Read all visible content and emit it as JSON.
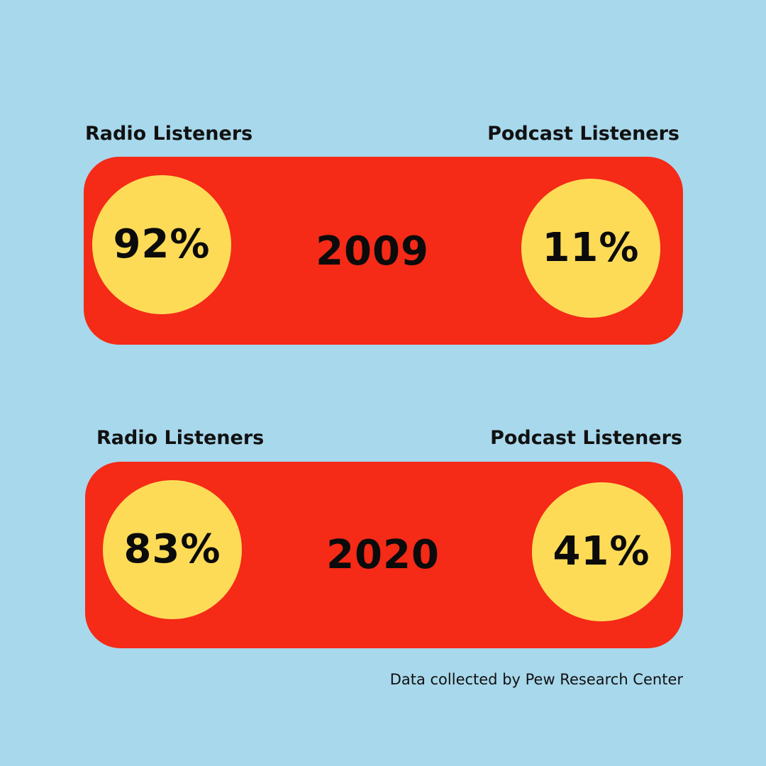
{
  "colors": {
    "background": "#a8d8ec",
    "panel": "#f52a17",
    "circle": "#fddb57",
    "text": "#0b0b0b"
  },
  "chart_data": {
    "type": "table",
    "columns": [
      "Radio Listeners",
      "Podcast Listeners"
    ],
    "rows": [
      {
        "year": "2009",
        "radio": "92%",
        "podcast": "11%",
        "radio_value": 92,
        "podcast_value": 11
      },
      {
        "year": "2020",
        "radio": "83%",
        "podcast": "41%",
        "radio_value": 83,
        "podcast_value": 41
      }
    ],
    "source": "Data collected by Pew Research Center"
  }
}
